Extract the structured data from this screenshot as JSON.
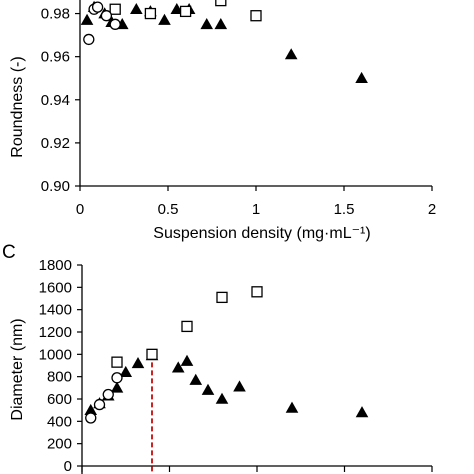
{
  "chart_data": [
    {
      "type": "scatter",
      "panel_label": "",
      "xlabel": "Suspension density (mg·mL⁻¹)",
      "ylabel": "Roundness (-)",
      "xlim": [
        0,
        2
      ],
      "ylim": [
        0.9,
        0.99
      ],
      "xticks": [
        0,
        0.5,
        1,
        1.5,
        2
      ],
      "xtick_labels": [
        "0",
        "0.5",
        "1",
        "1.5",
        "2"
      ],
      "yticks": [
        0.9,
        0.92,
        0.94,
        0.96,
        0.98
      ],
      "ytick_labels": [
        "0.90",
        "0.92",
        "0.94",
        "0.96",
        "0.98"
      ],
      "grid": false,
      "legend": "none",
      "series": [
        {
          "marker": "triangle",
          "points": [
            [
              0.04,
              0.977
            ],
            [
              0.08,
              0.983
            ],
            [
              0.14,
              0.98
            ],
            [
              0.18,
              0.976
            ],
            [
              0.24,
              0.975
            ],
            [
              0.32,
              0.982
            ],
            [
              0.4,
              0.981
            ],
            [
              0.48,
              0.977
            ],
            [
              0.55,
              0.982
            ],
            [
              0.62,
              0.982
            ],
            [
              0.72,
              0.975
            ],
            [
              0.8,
              0.975
            ],
            [
              1.2,
              0.961
            ],
            [
              1.6,
              0.95
            ]
          ]
        },
        {
          "marker": "square",
          "points": [
            [
              0.2,
              0.982
            ],
            [
              0.4,
              0.98
            ],
            [
              0.6,
              0.981
            ],
            [
              0.8,
              0.986
            ],
            [
              1.0,
              0.979
            ]
          ]
        },
        {
          "marker": "circle",
          "points": [
            [
              0.05,
              0.968
            ],
            [
              0.08,
              0.982
            ],
            [
              0.1,
              0.983
            ],
            [
              0.15,
              0.979
            ],
            [
              0.2,
              0.975
            ]
          ]
        }
      ]
    },
    {
      "type": "scatter",
      "panel_label": "C",
      "xlabel": "",
      "ylabel": "Diameter (nm)",
      "xlim": [
        0,
        2
      ],
      "ylim": [
        0,
        1800
      ],
      "yticks": [
        0,
        200,
        400,
        600,
        800,
        1000,
        1200,
        1400,
        1600,
        1800
      ],
      "ytick_labels": [
        "0",
        "200",
        "400",
        "600",
        "800",
        "1000",
        "1200",
        "1400",
        "1600",
        "1800"
      ],
      "grid": false,
      "legend": "none",
      "reference_line": {
        "x": 0.4,
        "y_to": 1000,
        "color": "#cc2222",
        "style": "dashed"
      },
      "series": [
        {
          "marker": "triangle",
          "points": [
            [
              0.05,
              500
            ],
            [
              0.1,
              560
            ],
            [
              0.15,
              630
            ],
            [
              0.2,
              700
            ],
            [
              0.25,
              840
            ],
            [
              0.32,
              920
            ],
            [
              0.4,
              990
            ],
            [
              0.55,
              880
            ],
            [
              0.6,
              940
            ],
            [
              0.65,
              770
            ],
            [
              0.72,
              680
            ],
            [
              0.8,
              600
            ],
            [
              0.9,
              710
            ],
            [
              1.2,
              520
            ],
            [
              1.6,
              480
            ]
          ]
        },
        {
          "marker": "square",
          "points": [
            [
              0.2,
              930
            ],
            [
              0.4,
              1000
            ],
            [
              0.6,
              1250
            ],
            [
              0.8,
              1510
            ],
            [
              1.0,
              1560
            ]
          ]
        },
        {
          "marker": "circle",
          "points": [
            [
              0.05,
              430
            ],
            [
              0.1,
              550
            ],
            [
              0.15,
              640
            ],
            [
              0.2,
              790
            ]
          ]
        }
      ]
    }
  ]
}
